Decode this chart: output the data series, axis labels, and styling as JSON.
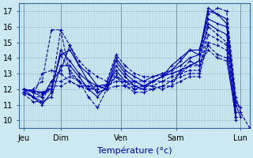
{
  "xlabel": "Température (°c)",
  "xlim": [
    0,
    100
  ],
  "ylim": [
    9.5,
    17.5
  ],
  "yticks": [
    10,
    11,
    12,
    13,
    14,
    15,
    16,
    17
  ],
  "day_ticks": [
    2,
    18,
    44,
    68,
    96
  ],
  "day_labels": [
    "Jeu",
    "Dim",
    "Ven",
    "Sam",
    "Lun"
  ],
  "bg_color": "#cce8f0",
  "line_color": "#0000bb",
  "grid_color": "#a0c4d4",
  "series": [
    {
      "x": [
        2,
        6,
        10,
        14,
        18,
        22,
        26,
        30,
        34,
        38,
        42,
        46,
        50,
        54,
        58,
        62,
        66,
        70,
        74,
        78,
        82,
        86,
        90,
        94,
        96,
        100
      ],
      "y": [
        12.0,
        11.8,
        11.7,
        11.9,
        15.8,
        14.8,
        13.8,
        13.2,
        12.8,
        12.5,
        14.2,
        13.5,
        13.0,
        12.8,
        12.8,
        12.9,
        13.0,
        13.2,
        13.5,
        13.8,
        16.8,
        17.2,
        17.0,
        11.5,
        10.5,
        9.5
      ],
      "dashed": true
    },
    {
      "x": [
        2,
        6,
        10,
        14,
        18,
        22,
        26,
        30,
        34,
        38,
        42,
        46,
        50,
        54,
        58,
        62,
        66,
        70,
        74,
        78,
        82,
        86,
        90,
        94,
        96
      ],
      "y": [
        12.0,
        11.9,
        11.8,
        12.0,
        14.2,
        14.5,
        13.5,
        13.0,
        12.2,
        12.3,
        14.0,
        13.2,
        12.8,
        12.5,
        12.8,
        13.0,
        13.2,
        13.5,
        14.0,
        14.2,
        17.0,
        16.8,
        16.5,
        11.0,
        10.2
      ],
      "dashed": false
    },
    {
      "x": [
        2,
        6,
        10,
        14,
        18,
        22,
        26,
        30,
        34,
        38,
        42,
        46,
        50,
        54,
        58,
        62,
        66,
        70,
        74,
        78,
        82,
        86,
        90,
        94,
        96
      ],
      "y": [
        12.0,
        11.8,
        11.5,
        12.5,
        13.2,
        14.8,
        13.5,
        12.5,
        11.8,
        12.0,
        13.8,
        13.0,
        12.5,
        12.2,
        12.5,
        12.8,
        13.2,
        13.8,
        14.5,
        14.2,
        17.2,
        16.8,
        16.2,
        11.2,
        10.8
      ],
      "dashed": false
    },
    {
      "x": [
        2,
        6,
        10,
        14,
        18,
        22,
        26,
        30,
        34,
        38,
        42,
        46,
        50,
        54,
        58,
        62,
        66,
        70,
        74,
        78,
        82,
        86,
        90,
        94
      ],
      "y": [
        11.8,
        11.5,
        11.0,
        11.8,
        14.5,
        13.8,
        13.0,
        12.5,
        12.2,
        12.0,
        13.5,
        12.8,
        12.2,
        12.0,
        12.5,
        12.8,
        13.5,
        14.0,
        14.5,
        14.5,
        16.5,
        16.2,
        16.0,
        11.0
      ],
      "dashed": false
    },
    {
      "x": [
        2,
        6,
        10,
        14,
        18,
        22,
        26,
        30,
        34,
        38,
        42,
        46,
        50,
        54,
        58,
        62,
        66,
        70,
        74,
        78,
        82,
        86,
        90,
        94
      ],
      "y": [
        12.0,
        11.5,
        11.2,
        11.5,
        13.5,
        13.5,
        12.8,
        12.0,
        11.5,
        12.2,
        13.2,
        12.5,
        12.5,
        12.2,
        12.5,
        12.8,
        13.0,
        13.2,
        13.5,
        13.8,
        16.2,
        15.8,
        15.5,
        10.5
      ],
      "dashed": false
    },
    {
      "x": [
        2,
        6,
        10,
        14,
        18,
        22,
        26,
        30,
        34,
        38,
        42,
        46,
        50,
        54,
        58,
        62,
        66,
        70,
        74,
        78,
        82,
        86,
        90,
        94
      ],
      "y": [
        12.0,
        11.8,
        11.8,
        12.0,
        14.2,
        13.2,
        12.5,
        11.5,
        10.8,
        12.0,
        13.0,
        12.2,
        12.0,
        12.2,
        12.2,
        12.5,
        12.8,
        13.0,
        13.2,
        13.2,
        16.0,
        15.5,
        15.0,
        10.2
      ],
      "dashed": true
    },
    {
      "x": [
        2,
        6,
        10,
        14,
        18,
        22,
        26,
        30,
        34,
        38,
        42,
        46,
        50,
        54,
        58,
        62,
        66,
        70,
        74,
        78,
        82,
        86,
        90,
        94
      ],
      "y": [
        11.8,
        12.0,
        12.5,
        15.8,
        15.8,
        13.0,
        12.5,
        12.2,
        11.8,
        12.0,
        12.8,
        12.5,
        12.0,
        12.0,
        12.0,
        12.2,
        12.5,
        12.8,
        13.0,
        13.0,
        15.5,
        15.2,
        14.8,
        10.2
      ],
      "dashed": true
    },
    {
      "x": [
        2,
        6,
        10,
        14,
        18,
        22,
        26,
        30,
        34,
        38,
        42,
        46,
        50,
        54,
        58,
        62,
        66,
        70,
        74,
        78,
        82,
        86,
        90,
        94
      ],
      "y": [
        11.8,
        11.5,
        13.0,
        13.2,
        13.0,
        12.5,
        12.2,
        12.0,
        12.2,
        12.2,
        12.8,
        12.2,
        11.8,
        11.8,
        12.0,
        12.2,
        12.2,
        12.5,
        12.8,
        12.8,
        15.0,
        14.8,
        14.5,
        10.0
      ],
      "dashed": true
    },
    {
      "x": [
        2,
        6,
        10,
        14,
        18,
        22,
        26,
        30,
        34,
        38,
        42,
        46,
        50,
        54,
        58,
        62,
        66,
        70,
        74,
        78,
        82,
        86,
        90,
        94
      ],
      "y": [
        11.7,
        11.2,
        11.2,
        12.5,
        12.5,
        12.8,
        12.5,
        12.0,
        12.0,
        12.2,
        12.5,
        12.5,
        12.2,
        12.2,
        12.2,
        12.0,
        12.2,
        13.2,
        13.8,
        13.5,
        14.8,
        14.2,
        14.0,
        10.2
      ],
      "dashed": true
    },
    {
      "x": [
        2,
        6,
        10,
        14,
        18,
        22,
        26,
        30,
        34,
        38,
        42,
        46,
        50,
        54,
        58,
        62,
        66,
        70,
        74,
        78,
        82,
        86,
        90,
        94
      ],
      "y": [
        11.8,
        11.5,
        11.5,
        12.2,
        12.2,
        12.5,
        12.2,
        12.2,
        12.2,
        12.0,
        12.2,
        12.2,
        12.5,
        12.5,
        12.5,
        12.5,
        12.5,
        13.0,
        13.5,
        13.5,
        14.5,
        14.0,
        13.8,
        10.5
      ],
      "dashed": true
    }
  ]
}
